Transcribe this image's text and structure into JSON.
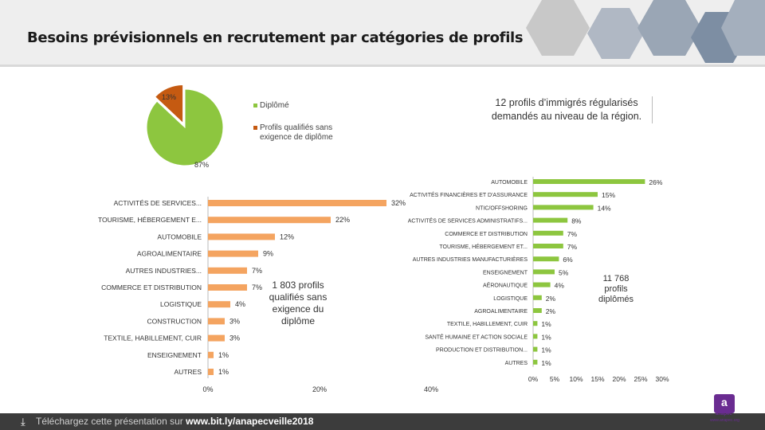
{
  "header": {
    "title": "Besoins prévisionnels en recrutement par catégories de profils"
  },
  "callouts": {
    "top": "12 profils d’immigrés régularisés demandés au niveau de la région.",
    "mid": "1 803 profils qualifiés sans exigence du diplôme",
    "right": "11 768 profils diplômés"
  },
  "footer": {
    "icon": "download-icon",
    "prefix": "Téléchargez cette présentation sur",
    "link": "www.bit.ly/anapecveille2018"
  },
  "logo": {
    "brand": "anapec",
    "url": "www.anapec.org",
    "letter": "a"
  },
  "colors": {
    "green": "#8dc63f",
    "orange": "#e97e2d",
    "dark_orange": "#c55a11"
  },
  "chart_data": [
    {
      "type": "pie",
      "labels": [
        "Diplômé",
        "Profils qualifiés sans exigence de diplôme"
      ],
      "values": [
        87,
        13
      ],
      "value_labels": [
        "87%",
        "13%"
      ],
      "colors": [
        "#8dc63f",
        "#c55a11"
      ],
      "legend": "right"
    },
    {
      "type": "bar",
      "orientation": "horizontal",
      "categories": [
        "ACTIVITÉS DE SERVICES...",
        "TOURISME, HÉBERGEMENT E...",
        "AUTOMOBILE",
        "AGROALIMENTAIRE",
        "AUTRES INDUSTRIES...",
        "COMMERCE ET DISTRIBUTION",
        "LOGISTIQUE",
        "CONSTRUCTION",
        "TEXTILE, HABILLEMENT, CUIR",
        "ENSEIGNEMENT",
        "AUTRES"
      ],
      "values": [
        32,
        22,
        12,
        9,
        7,
        7,
        4,
        3,
        3,
        1,
        1
      ],
      "value_labels": [
        "32%",
        "22%",
        "12%",
        "9%",
        "7%",
        "7%",
        "4%",
        "3%",
        "3%",
        "1%",
        "1%"
      ],
      "xticks": [
        "0%",
        "20%",
        "40%"
      ],
      "xlim": [
        0,
        40
      ],
      "color": "#f4a460"
    },
    {
      "type": "bar",
      "orientation": "horizontal",
      "categories": [
        "AUTOMOBILE",
        "ACTIVITÉS FINANCIÈRES ET D'ASSURANCE",
        "NTIC/OFFSHORING",
        "ACTIVITÉS DE SERVICES ADMINISTRATIFS...",
        "COMMERCE ET DISTRIBUTION",
        "TOURISME, HÉBERGEMENT ET...",
        "AUTRES INDUSTRIES MANUFACTURIÈRES",
        "ENSEIGNEMENT",
        "AÉRONAUTIQUE",
        "LOGISTIQUE",
        "AGROALIMENTAIRE",
        "TEXTILE, HABILLEMENT, CUIR",
        "SANTÉ HUMAINE ET ACTION SOCIALE",
        "PRODUCTION ET DISTRIBUTION...",
        "AUTRES"
      ],
      "values": [
        26,
        15,
        14,
        8,
        7,
        7,
        6,
        5,
        4,
        2,
        2,
        1,
        1,
        1,
        1
      ],
      "value_labels": [
        "26%",
        "15%",
        "14%",
        "8%",
        "7%",
        "7%",
        "6%",
        "5%",
        "4%",
        "2%",
        "2%",
        "1%",
        "1%",
        "1%",
        "1%"
      ],
      "xticks": [
        "0%",
        "5%",
        "10%",
        "15%",
        "20%",
        "25%",
        "30%"
      ],
      "xlim": [
        0,
        30
      ],
      "color": "#8dc63f"
    }
  ]
}
